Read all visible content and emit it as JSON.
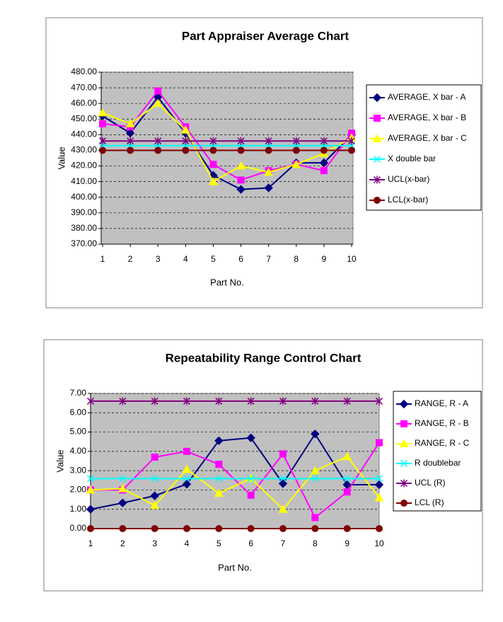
{
  "chart_data": [
    {
      "type": "line",
      "title": "Part Appraiser Average Chart",
      "y_label": "Value",
      "x_label": "Part No.",
      "categories": [
        "1",
        "2",
        "3",
        "4",
        "5",
        "6",
        "7",
        "8",
        "9",
        "10"
      ],
      "ylim": [
        370,
        480
      ],
      "yticks": [
        {
          "value": 370,
          "label": "370.00"
        },
        {
          "value": 380,
          "label": "380.00"
        },
        {
          "value": 390,
          "label": "390.00"
        },
        {
          "value": 400,
          "label": "400.00"
        },
        {
          "value": 410,
          "label": "410.00"
        },
        {
          "value": 420,
          "label": "420.00"
        },
        {
          "value": 430,
          "label": "430.00"
        },
        {
          "value": 440,
          "label": "440.00"
        },
        {
          "value": 450,
          "label": "450.00"
        },
        {
          "value": 460,
          "label": "460.00"
        },
        {
          "value": 470,
          "label": "470.00"
        },
        {
          "value": 480,
          "label": "480.00"
        }
      ],
      "grid": true,
      "legend": "right",
      "plot_background": "#c0c0c0",
      "series": [
        {
          "name": "AVERAGE, X bar - A",
          "color": "#000080",
          "marker": "diamond",
          "values": [
            452,
            441,
            464,
            441,
            414,
            405,
            406,
            422,
            422,
            440
          ]
        },
        {
          "name": "AVERAGE, X bar - B",
          "color": "#ff00ff",
          "marker": "square",
          "values": [
            447,
            445,
            468,
            445,
            421,
            411,
            417,
            421,
            417,
            441
          ]
        },
        {
          "name": "AVERAGE, X bar - C",
          "color": "#ffff00",
          "marker": "triangle",
          "values": [
            454,
            447,
            460,
            443,
            410,
            420,
            416,
            421,
            428,
            438
          ]
        },
        {
          "name": "X double bar",
          "color": "#00ffff",
          "marker": "x",
          "values": [
            433,
            433,
            433,
            433,
            433,
            433,
            433,
            433,
            433,
            433
          ]
        },
        {
          "name": "UCL(x-bar)",
          "color": "#800080",
          "marker": "star",
          "values": [
            436,
            436,
            436,
            436,
            436,
            436,
            436,
            436,
            436,
            436
          ]
        },
        {
          "name": "LCL(x-bar)",
          "color": "#800000",
          "marker": "circle",
          "values": [
            430,
            430,
            430,
            430,
            430,
            430,
            430,
            430,
            430,
            430
          ]
        }
      ]
    },
    {
      "type": "line",
      "title": "Repeatability Range Control Chart",
      "y_label": "Value",
      "x_label": "Part No.",
      "categories": [
        "1",
        "2",
        "3",
        "4",
        "5",
        "6",
        "7",
        "8",
        "9",
        "10"
      ],
      "ylim": [
        0,
        7
      ],
      "yticks": [
        {
          "value": 0,
          "label": "0.00"
        },
        {
          "value": 1,
          "label": "1.00"
        },
        {
          "value": 2,
          "label": "2.00"
        },
        {
          "value": 3,
          "label": "3.00"
        },
        {
          "value": 4,
          "label": "4.00"
        },
        {
          "value": 5,
          "label": "5.00"
        },
        {
          "value": 6,
          "label": "6.00"
        },
        {
          "value": 7,
          "label": "7.00"
        }
      ],
      "grid": true,
      "legend": "right",
      "plot_background": "#c0c0c0",
      "series": [
        {
          "name": "RANGE, R - A",
          "color": "#000080",
          "marker": "diamond",
          "values": [
            1.0,
            1.33,
            1.7,
            2.3,
            4.55,
            4.7,
            2.33,
            4.9,
            2.27,
            2.27
          ]
        },
        {
          "name": "RANGE, R - B",
          "color": "#ff00ff",
          "marker": "square",
          "values": [
            2.0,
            2.0,
            3.7,
            4.0,
            3.33,
            1.73,
            3.87,
            0.57,
            1.9,
            4.45
          ]
        },
        {
          "name": "RANGE, R - C",
          "color": "#ffff00",
          "marker": "triangle",
          "values": [
            2.0,
            2.07,
            1.2,
            3.07,
            1.83,
            2.6,
            1.0,
            3.0,
            3.73,
            1.6
          ]
        },
        {
          "name": "R doublebar",
          "color": "#00ffff",
          "marker": "x",
          "values": [
            2.59,
            2.59,
            2.59,
            2.59,
            2.59,
            2.59,
            2.59,
            2.59,
            2.59,
            2.59
          ]
        },
        {
          "name": "UCL (R)",
          "color": "#800080",
          "marker": "star",
          "values": [
            6.6,
            6.6,
            6.6,
            6.6,
            6.6,
            6.6,
            6.6,
            6.6,
            6.6,
            6.6
          ]
        },
        {
          "name": "LCL (R)",
          "color": "#800000",
          "marker": "circle",
          "values": [
            0,
            0,
            0,
            0,
            0,
            0,
            0,
            0,
            0,
            0
          ]
        }
      ]
    }
  ]
}
